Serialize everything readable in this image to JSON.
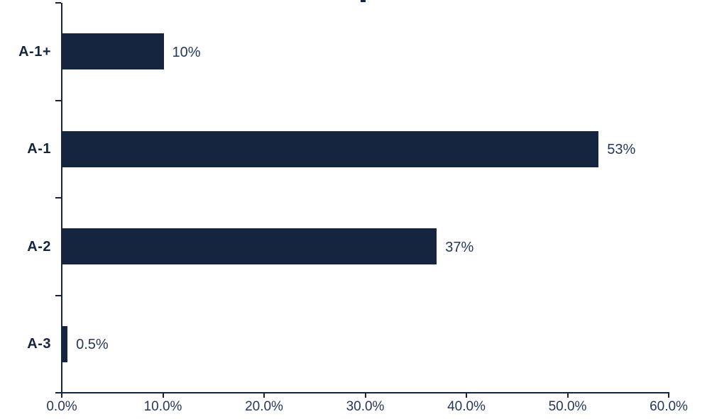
{
  "chart": {
    "bar_color": "#16253F",
    "axis_color": "#16253F",
    "category_label_color": "#16253F",
    "value_label_color": "#25375B",
    "tick_label_color": "#25375B",
    "background_color": "#FFFFFF"
  },
  "chart_data": {
    "type": "bar",
    "orientation": "horizontal",
    "title": "",
    "xlabel": "",
    "ylabel": "",
    "categories": [
      "A-1+",
      "A-1",
      "A-2",
      "A-3"
    ],
    "values": [
      10,
      53,
      37,
      0.5
    ],
    "value_labels": [
      "10%",
      "53%",
      "37%",
      "0.5%"
    ],
    "x_tick_values": [
      0,
      10,
      20,
      30,
      40,
      50,
      60
    ],
    "x_tick_labels": [
      "0.0%",
      "10.0%",
      "20.0%",
      "30.0%",
      "40.0%",
      "50.0%",
      "60.0%"
    ],
    "xlim": [
      0,
      60
    ],
    "grid": false,
    "legend": "none"
  }
}
